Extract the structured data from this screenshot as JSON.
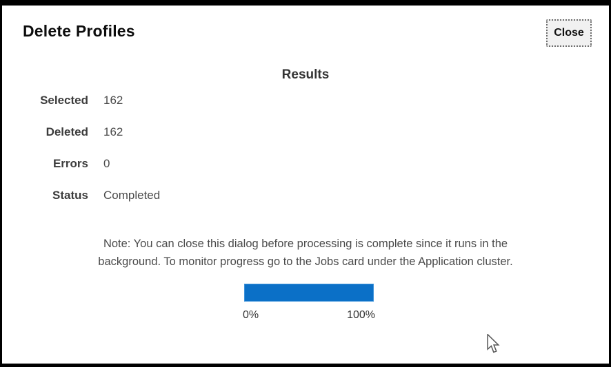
{
  "dialog": {
    "title": "Delete Profiles",
    "close_label": "Close",
    "results_heading": "Results",
    "rows": [
      {
        "label": "Selected",
        "value": "162"
      },
      {
        "label": "Deleted",
        "value": "162"
      },
      {
        "label": "Errors",
        "value": "0"
      },
      {
        "label": "Status",
        "value": "Completed"
      }
    ],
    "note_line1": "Note: You can close this dialog before processing is complete since it runs in the",
    "note_line2": "background. To monitor progress go to the Jobs card under the Application cluster.",
    "progress": {
      "percent": 100,
      "start_label": "0%",
      "end_label": "100%",
      "bar_color": "#0b70c7",
      "bar_border_color": "#3e93da"
    }
  },
  "colors": {
    "frame_border": "#000000",
    "dialog_background": "#ffffff",
    "accent_blue": "#0b70c7",
    "label_text": "#3c3c3c",
    "value_text": "#4a4a4a"
  }
}
